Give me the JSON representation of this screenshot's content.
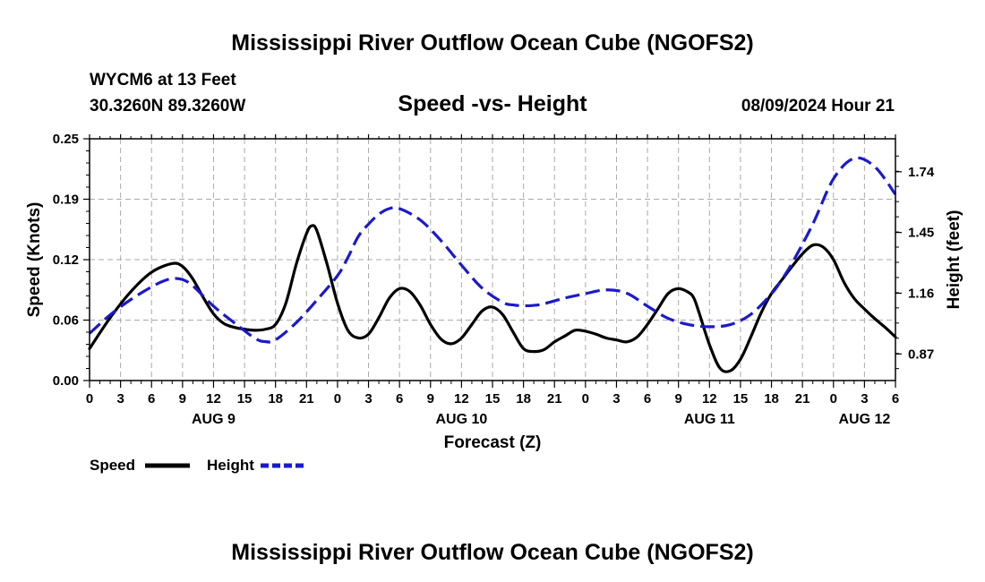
{
  "header": {
    "title": "Mississippi River Outflow Ocean Cube (NGOFS2)",
    "station": "WYCM6 at 13 Feet",
    "coords": "30.3260N  89.3260W",
    "datetime": "08/09/2024 Hour 21"
  },
  "footer": {
    "title": "Mississippi River Outflow Ocean Cube (NGOFS2)"
  },
  "legend": {
    "speed_label": "Speed",
    "height_label": "Height"
  },
  "colors": {
    "speed": "#000000",
    "height": "#1a1acc",
    "grid": "#aaaaaa"
  },
  "chart_data": {
    "type": "line",
    "title": "Speed -vs- Height",
    "xlabel": "Forecast (Z)",
    "ylabel": "Speed (Knots)",
    "y2label": "Height (feet)",
    "x_unit": "hours since AUG 9 00Z",
    "xlim": [
      0,
      78
    ],
    "xticks": [
      0,
      3,
      6,
      9,
      12,
      15,
      18,
      21,
      24,
      27,
      30,
      33,
      36,
      39,
      42,
      45,
      48,
      51,
      54,
      57,
      60,
      63,
      66,
      69,
      72,
      75,
      78
    ],
    "xtick_labels": [
      "0",
      "3",
      "6",
      "9",
      "12",
      "15",
      "18",
      "21",
      "0",
      "3",
      "6",
      "9",
      "12",
      "15",
      "18",
      "21",
      "0",
      "3",
      "6",
      "9",
      "12",
      "15",
      "18",
      "21",
      "0",
      "3",
      "6"
    ],
    "date_labels": [
      {
        "x": 12,
        "label": "AUG 9"
      },
      {
        "x": 36,
        "label": "AUG 10"
      },
      {
        "x": 60,
        "label": "AUG 11"
      },
      {
        "x": 75,
        "label": "AUG 12"
      }
    ],
    "ylim": [
      0,
      0.25
    ],
    "yticks": [
      "0.00",
      "0.06",
      "0.12",
      "0.19",
      "0.25"
    ],
    "y2ticks": [
      "0.87",
      "1.16",
      "1.45",
      "1.74"
    ],
    "series": [
      {
        "name": "Speed",
        "axis": "left",
        "style": "solid",
        "x": [
          0,
          2,
          4,
          6,
          8,
          9,
          10,
          11,
          12,
          13,
          14,
          15,
          16,
          17,
          18,
          19,
          20,
          21,
          21.5,
          22,
          23,
          24,
          25,
          26,
          27,
          28,
          29,
          30,
          31,
          32,
          33,
          34,
          35,
          36,
          37,
          38,
          39,
          40,
          41,
          42,
          43,
          44,
          45,
          46,
          47,
          48,
          49,
          50,
          51,
          52,
          53,
          54,
          55,
          56,
          57,
          58,
          58.5,
          59,
          60,
          61,
          62,
          63,
          64,
          65,
          66,
          67,
          68,
          69,
          70,
          71,
          72,
          73,
          74,
          75,
          76,
          77,
          78
        ],
        "values": [
          0.033,
          0.065,
          0.092,
          0.112,
          0.121,
          0.118,
          0.105,
          0.086,
          0.069,
          0.059,
          0.055,
          0.053,
          0.052,
          0.053,
          0.058,
          0.08,
          0.12,
          0.152,
          0.16,
          0.155,
          0.12,
          0.08,
          0.052,
          0.044,
          0.048,
          0.065,
          0.085,
          0.095,
          0.092,
          0.078,
          0.058,
          0.043,
          0.038,
          0.044,
          0.058,
          0.072,
          0.076,
          0.068,
          0.05,
          0.033,
          0.03,
          0.032,
          0.04,
          0.046,
          0.052,
          0.051,
          0.048,
          0.044,
          0.042,
          0.04,
          0.045,
          0.058,
          0.074,
          0.09,
          0.095,
          0.091,
          0.085,
          0.07,
          0.037,
          0.013,
          0.01,
          0.022,
          0.045,
          0.07,
          0.09,
          0.104,
          0.118,
          0.131,
          0.14,
          0.138,
          0.125,
          0.102,
          0.085,
          0.074,
          0.064,
          0.055,
          0.045
        ]
      },
      {
        "name": "Height",
        "axis": "right",
        "style": "dashed",
        "x": [
          0,
          2,
          4,
          6,
          7,
          8,
          9,
          10,
          12,
          14,
          16,
          17,
          18,
          20,
          22,
          24,
          25,
          26,
          27,
          28,
          29,
          30,
          32,
          34,
          36,
          38,
          40,
          41,
          42,
          43,
          44,
          46,
          48,
          50,
          52,
          54,
          56,
          58,
          60,
          62,
          64,
          66,
          67,
          68,
          70,
          72,
          74,
          76,
          78
        ],
        "values": [
          0.968,
          1.057,
          1.13,
          1.19,
          1.215,
          1.23,
          1.225,
          1.195,
          1.098,
          1.019,
          0.945,
          0.929,
          0.937,
          1.019,
          1.127,
          1.244,
          1.33,
          1.43,
          1.49,
          1.537,
          1.564,
          1.564,
          1.51,
          1.412,
          1.294,
          1.184,
          1.116,
          1.104,
          1.1,
          1.102,
          1.11,
          1.137,
          1.158,
          1.176,
          1.16,
          1.098,
          1.04,
          1.01,
          1.0,
          1.01,
          1.059,
          1.157,
          1.225,
          1.304,
          1.49,
          1.706,
          1.804,
          1.764,
          1.632
        ]
      }
    ]
  }
}
